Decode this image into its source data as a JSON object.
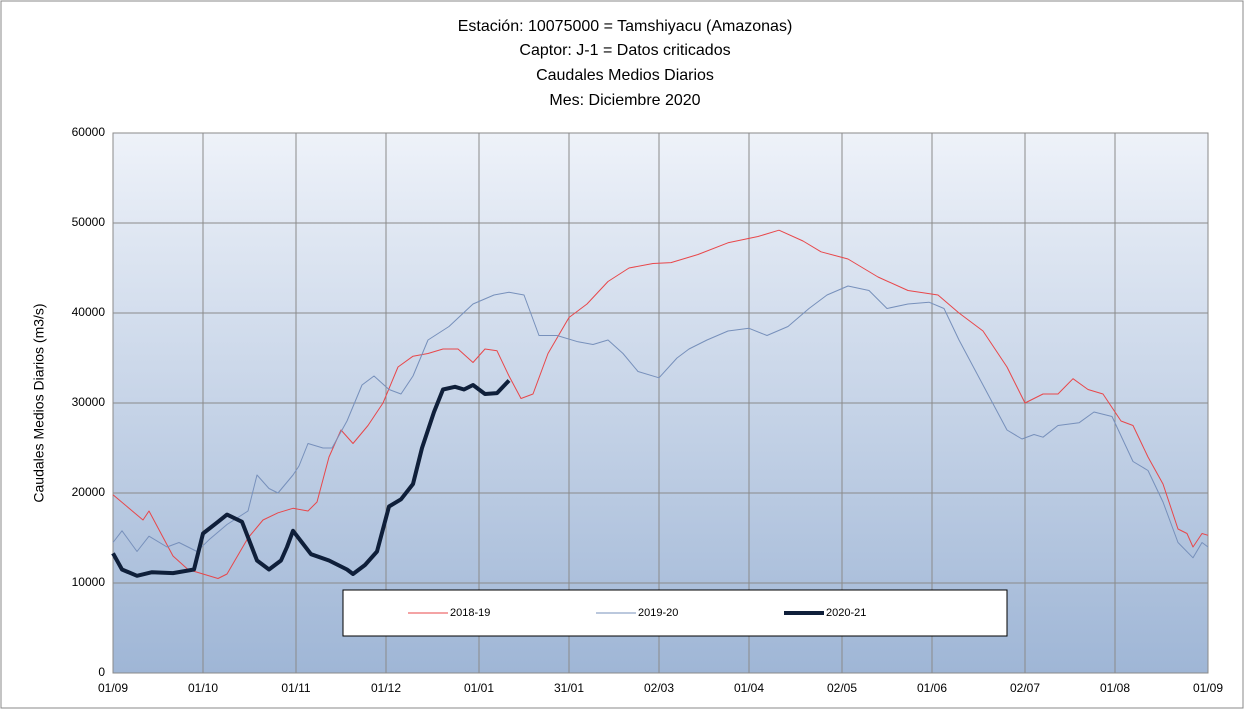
{
  "chart_data": {
    "type": "line",
    "title": [
      "Estación: 10075000 = Tamshiyacu   (Amazonas)",
      "Captor: J-1 = Datos criticados",
      "Caudales Medios Diarios",
      "Mes: Diciembre 2020"
    ],
    "y_label": "Caudales Medios Diarios (m3/s)",
    "xlim": [
      0,
      365
    ],
    "xticks": [
      {
        "value": 0,
        "label": "01/09"
      },
      {
        "value": 30,
        "label": "01/10"
      },
      {
        "value": 61,
        "label": "01/11"
      },
      {
        "value": 91,
        "label": "01/12"
      },
      {
        "value": 122,
        "label": "01/01"
      },
      {
        "value": 152,
        "label": "31/01"
      },
      {
        "value": 182,
        "label": "02/03"
      },
      {
        "value": 212,
        "label": "01/04"
      },
      {
        "value": 243,
        "label": "02/05"
      },
      {
        "value": 273,
        "label": "01/06"
      },
      {
        "value": 304,
        "label": "02/07"
      },
      {
        "value": 334,
        "label": "01/08"
      },
      {
        "value": 365,
        "label": "01/09"
      }
    ],
    "ylim": [
      0,
      60000
    ],
    "yticks": [
      0,
      10000,
      20000,
      30000,
      40000,
      50000,
      60000
    ],
    "grid": true,
    "legend": "bottom",
    "series": [
      {
        "name": "2018-19",
        "color": "#e8474a",
        "width": 1,
        "x": [
          0,
          10,
          12,
          20,
          25,
          30,
          35,
          38,
          45,
          50,
          55,
          60,
          65,
          68,
          72,
          76,
          80,
          85,
          90,
          95,
          100,
          105,
          110,
          115,
          120,
          124,
          128,
          132,
          136,
          140,
          145,
          152,
          158,
          165,
          172,
          180,
          186,
          195,
          205,
          215,
          222,
          230,
          236,
          245,
          255,
          265,
          275,
          282,
          290,
          298,
          304,
          310,
          315,
          320,
          325,
          330,
          336,
          340,
          345,
          350,
          355,
          358,
          360,
          363,
          365
        ],
        "values": [
          19800,
          17000,
          18000,
          13000,
          11500,
          11000,
          10500,
          11000,
          15000,
          17000,
          17800,
          18300,
          18000,
          19000,
          24000,
          27000,
          25500,
          27500,
          30000,
          34000,
          35200,
          35500,
          36000,
          36000,
          34500,
          36000,
          35800,
          33000,
          30500,
          31000,
          35500,
          39500,
          41000,
          43500,
          45000,
          45500,
          45600,
          46500,
          47800,
          48500,
          49200,
          48000,
          46800,
          46000,
          44000,
          42500,
          42000,
          40000,
          38000,
          34000,
          30000,
          31000,
          31000,
          32700,
          31500,
          31000,
          28000,
          27500,
          24000,
          21000,
          16000,
          15500,
          14000,
          15500,
          15300
        ]
      },
      {
        "name": "2019-20",
        "color": "#7790bb",
        "width": 1,
        "x": [
          0,
          3,
          8,
          12,
          18,
          22,
          28,
          32,
          38,
          45,
          48,
          52,
          55,
          60,
          62,
          65,
          70,
          73,
          78,
          83,
          87,
          92,
          96,
          100,
          105,
          112,
          120,
          127,
          132,
          137,
          142,
          148,
          155,
          160,
          165,
          170,
          175,
          182,
          188,
          192,
          198,
          205,
          212,
          218,
          225,
          232,
          238,
          245,
          252,
          258,
          265,
          272,
          277,
          282,
          290,
          298,
          303,
          307,
          310,
          315,
          322,
          327,
          333,
          340,
          345,
          350,
          355,
          360,
          363,
          365
        ],
        "values": [
          14500,
          15800,
          13500,
          15200,
          14000,
          14500,
          13500,
          14800,
          16500,
          18000,
          22000,
          20500,
          20000,
          22000,
          23000,
          25500,
          25000,
          25000,
          28000,
          32000,
          33000,
          31500,
          31000,
          33000,
          37000,
          38500,
          41000,
          42000,
          42300,
          42000,
          37500,
          37500,
          36800,
          36500,
          37000,
          35500,
          33500,
          32800,
          35000,
          36000,
          37000,
          38000,
          38300,
          37500,
          38500,
          40500,
          42000,
          43000,
          42500,
          40500,
          41000,
          41200,
          40500,
          37000,
          32000,
          27000,
          26000,
          26500,
          26200,
          27500,
          27800,
          29000,
          28500,
          23500,
          22500,
          19000,
          14500,
          12800,
          14500,
          14000
        ]
      },
      {
        "name": "2020-21",
        "color": "#0f1f3a",
        "width": 4,
        "x": [
          0,
          3,
          8,
          13,
          20,
          27,
          30,
          35,
          38,
          43,
          48,
          52,
          56,
          58,
          60,
          63,
          66,
          72,
          78,
          80,
          84,
          88,
          92,
          96,
          100,
          103,
          107,
          110,
          114,
          117,
          120,
          124,
          128,
          132
        ],
        "values": [
          13300,
          11500,
          10800,
          11200,
          11100,
          11500,
          15500,
          16800,
          17600,
          16800,
          12500,
          11500,
          12500,
          14000,
          15800,
          14500,
          13200,
          12500,
          11500,
          11000,
          12000,
          13500,
          18500,
          19300,
          21000,
          25000,
          29000,
          31500,
          31800,
          31500,
          32000,
          31000,
          31100,
          32500
        ]
      }
    ]
  }
}
